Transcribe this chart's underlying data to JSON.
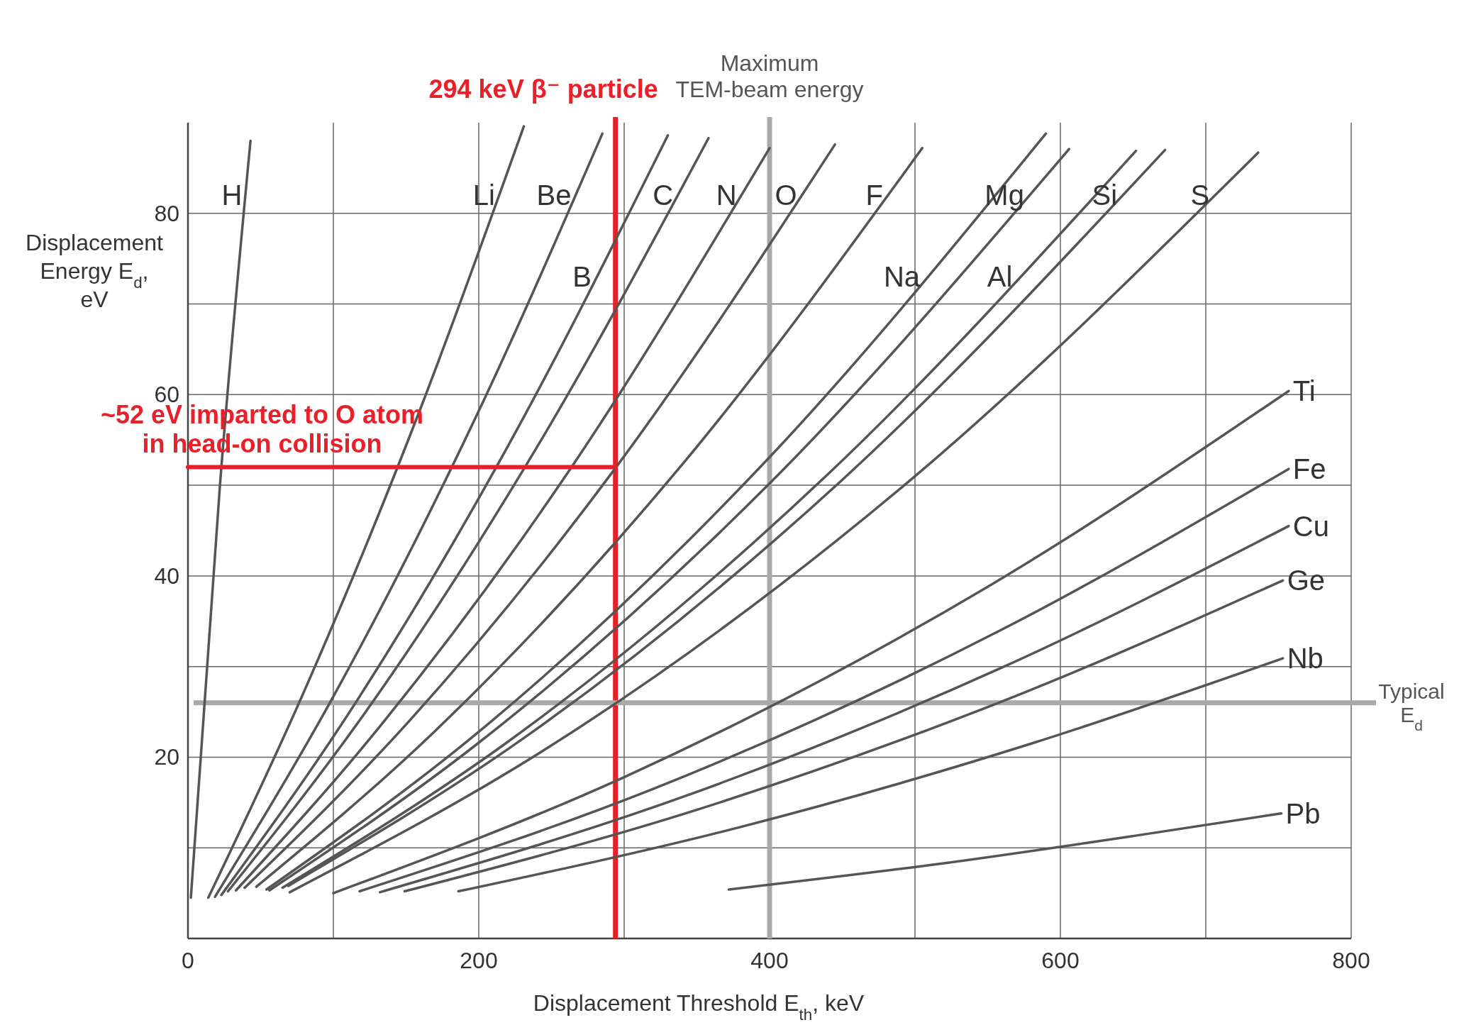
{
  "chart_data": {
    "type": "line",
    "xlabel": "Displacement Threshold E$_{th}$, keV",
    "ylabel": "Displacement\nEnergy E$_{d}$,\neV",
    "xlim": [
      0,
      800
    ],
    "ylim": [
      0,
      90
    ],
    "xticks": [
      0,
      {
        "value": 100,
        "label": null
      },
      200,
      {
        "value": 300,
        "label": null
      },
      400,
      {
        "value": 500,
        "label": null
      },
      600,
      {
        "value": 700,
        "label": null
      },
      800
    ],
    "yticks": [
      {
        "value": 10,
        "label": null
      },
      20,
      {
        "value": 30,
        "label": null
      },
      40,
      {
        "value": 50,
        "label": null
      },
      60,
      {
        "value": 70,
        "label": null
      },
      80
    ],
    "grid": true,
    "series": [
      {
        "name": "H",
        "color": "#555555",
        "x": [
          2,
          22,
          43
        ],
        "values": [
          4.5,
          50,
          88
        ]
      },
      {
        "name": "Li",
        "color": "#555555",
        "x": [
          14,
          80,
          160,
          231
        ],
        "values": [
          4.5,
          27.3,
          58.5,
          89.6
        ]
      },
      {
        "name": "Be",
        "color": "#555555",
        "x": [
          18.6,
          100,
          200,
          285
        ],
        "values": [
          4.6,
          26.7,
          58.2,
          88.8
        ]
      },
      {
        "name": "B",
        "color": "#555555",
        "x": [
          23,
          110,
          220,
          330
        ],
        "values": [
          4.8,
          24.7,
          54.3,
          88.6
        ]
      },
      {
        "name": "C",
        "color": "#555555",
        "x": [
          27.5,
          120,
          240,
          358
        ],
        "values": [
          5.2,
          24.5,
          54.2,
          88.3
        ]
      },
      {
        "name": "N",
        "color": "#555555",
        "x": [
          33,
          130,
          260,
          400
        ],
        "values": [
          5.3,
          23,
          51.1,
          87.2
        ]
      },
      {
        "name": "O",
        "color": "#555555",
        "x": [
          39,
          150,
          294,
          445
        ],
        "values": [
          5.6,
          23.6,
          51.9,
          87.6
        ]
      },
      {
        "name": "F",
        "color": "#555555",
        "x": [
          47,
          170,
          340,
          505
        ],
        "values": [
          5.7,
          22.9,
          52.3,
          87.2
        ]
      },
      {
        "name": "Na",
        "color": "#555555",
        "x": [
          54,
          200,
          400,
          590
        ],
        "values": [
          5.4,
          22.8,
          53.1,
          88.8
        ]
      },
      {
        "name": "Mg",
        "color": "#555555",
        "x": [
          56,
          200,
          400,
          606
        ],
        "values": [
          5.3,
          21.6,
          50.2,
          87.1
        ]
      },
      {
        "name": "Al",
        "color": "#555555",
        "x": [
          65,
          220,
          440,
          652
        ],
        "values": [
          5.6,
          21.7,
          51.2,
          86.9
        ]
      },
      {
        "name": "Si",
        "color": "#555555",
        "x": [
          69,
          230,
          450,
          672
        ],
        "values": [
          5.8,
          22,
          50.6,
          87
        ]
      },
      {
        "name": "S",
        "color": "#555555",
        "x": [
          70,
          250,
          500,
          736
        ],
        "values": [
          5.1,
          21.3,
          51,
          86.7
        ]
      },
      {
        "name": "Ti",
        "color": "#555555",
        "x": [
          100,
          300,
          550,
          757
        ],
        "values": [
          5,
          17.8,
          38.8,
          60.4
        ]
      },
      {
        "name": "Fe",
        "color": "#555555",
        "x": [
          118,
          320,
          560,
          757
        ],
        "values": [
          5.2,
          16.5,
          34.1,
          51.8
        ]
      },
      {
        "name": "Cu",
        "color": "#555555",
        "x": [
          132,
          340,
          560,
          757
        ],
        "values": [
          5.1,
          15.6,
          29.9,
          45.5
        ]
      },
      {
        "name": "Ge",
        "color": "#555555",
        "x": [
          149,
          350,
          570,
          753
        ],
        "values": [
          5.2,
          14.2,
          26.8,
          39.5
        ]
      },
      {
        "name": "Nb",
        "color": "#555555",
        "x": [
          186,
          380,
          580,
          753
        ],
        "values": [
          5.2,
          12.3,
          21.5,
          30.9
        ]
      },
      {
        "name": "Pb",
        "color": "#555555",
        "x": [
          372,
          520,
          650,
          752
        ],
        "values": [
          5.4,
          8.3,
          11.3,
          13.8
        ]
      },
      {
        "color": "#e8202a",
        "x": [
          0,
          294
        ],
        "values": [
          52,
          52
        ]
      }
    ],
    "ref_lines": [
      {
        "axis": "x",
        "value": 294,
        "label": "294 keV β⁻ particle",
        "color": "#e8202a"
      },
      {
        "axis": "x",
        "value": 400,
        "label": "Maximum\nTEM-beam energy",
        "color": "#a9a9a9"
      },
      {
        "axis": "y",
        "value": 26,
        "label": "Typical\nE$_{d}$",
        "color": "#a9a9a9"
      }
    ],
    "annotations": [
      {
        "text": "~52 eV imparted to O atom\nin head-on collision",
        "x": 51,
        "y": 52
      }
    ]
  }
}
